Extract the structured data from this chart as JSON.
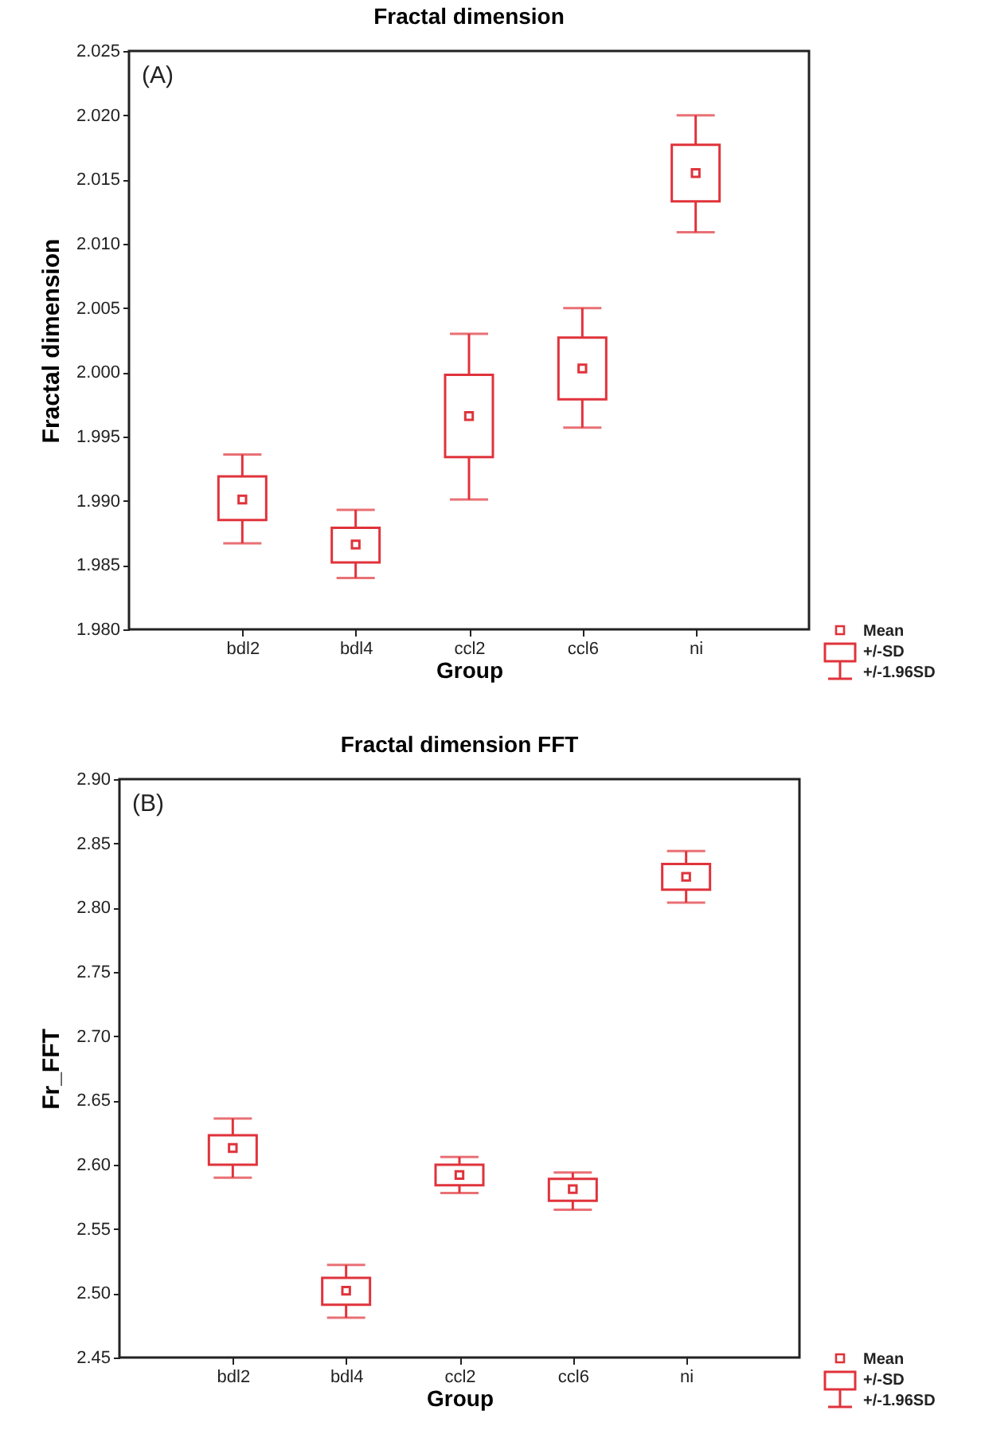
{
  "chart_data": [
    {
      "type": "box",
      "title": "Fractal dimension",
      "xlabel": "Group",
      "ylabel": "Fractal dimension",
      "categories": [
        "bdl2",
        "bdl4",
        "ccl2",
        "ccl6",
        "ni"
      ],
      "series": [
        {
          "color": "#e0333b",
          "boxes": [
            {
              "low": 1.9867,
              "q1": 1.9885,
              "median": 1.9901,
              "q3": 1.9919,
              "high": 1.9936
            },
            {
              "low": 1.984,
              "q1": 1.9852,
              "median": 1.9866,
              "q3": 1.9879,
              "high": 1.9893
            },
            {
              "low": 1.9901,
              "q1": 1.9934,
              "median": 1.9966,
              "q3": 1.9998,
              "high": 2.003
            },
            {
              "low": 1.9957,
              "q1": 1.9979,
              "median": 2.0003,
              "q3": 2.0027,
              "high": 2.005
            },
            {
              "low": 2.0109,
              "q1": 2.0133,
              "median": 2.0155,
              "q3": 2.0177,
              "high": 2.02
            }
          ]
        }
      ],
      "ylim": [
        1.98,
        2.025
      ],
      "yticks": [
        {
          "value": 1.98,
          "label": "1.980"
        },
        1.985,
        {
          "value": 1.99,
          "label": "1.990"
        },
        1.995,
        {
          "value": 2,
          "label": "2.000"
        },
        2.005,
        {
          "value": 2.01,
          "label": "2.010"
        },
        2.015,
        {
          "value": 2.02,
          "label": "2.020"
        },
        2.025
      ],
      "grid": false,
      "marker": "square",
      "annotations": [
        "(A)",
        "Mean",
        "+/-SD",
        "+/-1.96SD"
      ]
    },
    {
      "type": "box",
      "title": "Fractal dimension FFT",
      "xlabel": "Group",
      "ylabel": "Fr_FFT",
      "categories": [
        "bdl2",
        "bdl4",
        "ccl2",
        "ccl6",
        "ni"
      ],
      "series": [
        {
          "color": "#e0333b",
          "boxes": [
            {
              "low": 2.59,
              "q1": 2.6,
              "median": 2.613,
              "q3": 2.623,
              "high": 2.636
            },
            {
              "low": 2.481,
              "q1": 2.491,
              "median": 2.502,
              "q3": 2.512,
              "high": 2.522
            },
            {
              "low": 2.578,
              "q1": 2.584,
              "median": 2.592,
              "q3": 2.6,
              "high": 2.606
            },
            {
              "low": 2.565,
              "q1": 2.572,
              "median": 2.581,
              "q3": 2.589,
              "high": 2.594
            },
            {
              "low": 2.804,
              "q1": 2.814,
              "median": 2.824,
              "q3": 2.834,
              "high": 2.844
            }
          ]
        }
      ],
      "ylim": [
        2.45,
        2.9
      ],
      "yticks": [
        2.45,
        {
          "value": 2.5,
          "label": "2.50"
        },
        2.55,
        {
          "value": 2.6,
          "label": "2.60"
        },
        2.65,
        {
          "value": 2.7,
          "label": "2.70"
        },
        2.75,
        {
          "value": 2.8,
          "label": "2.80"
        },
        2.85,
        {
          "value": 2.9,
          "label": "2.90"
        }
      ],
      "grid": false,
      "marker": "square",
      "annotations": [
        "(B)",
        "Mean",
        "+/-SD",
        "+/-1.96SD"
      ]
    }
  ]
}
